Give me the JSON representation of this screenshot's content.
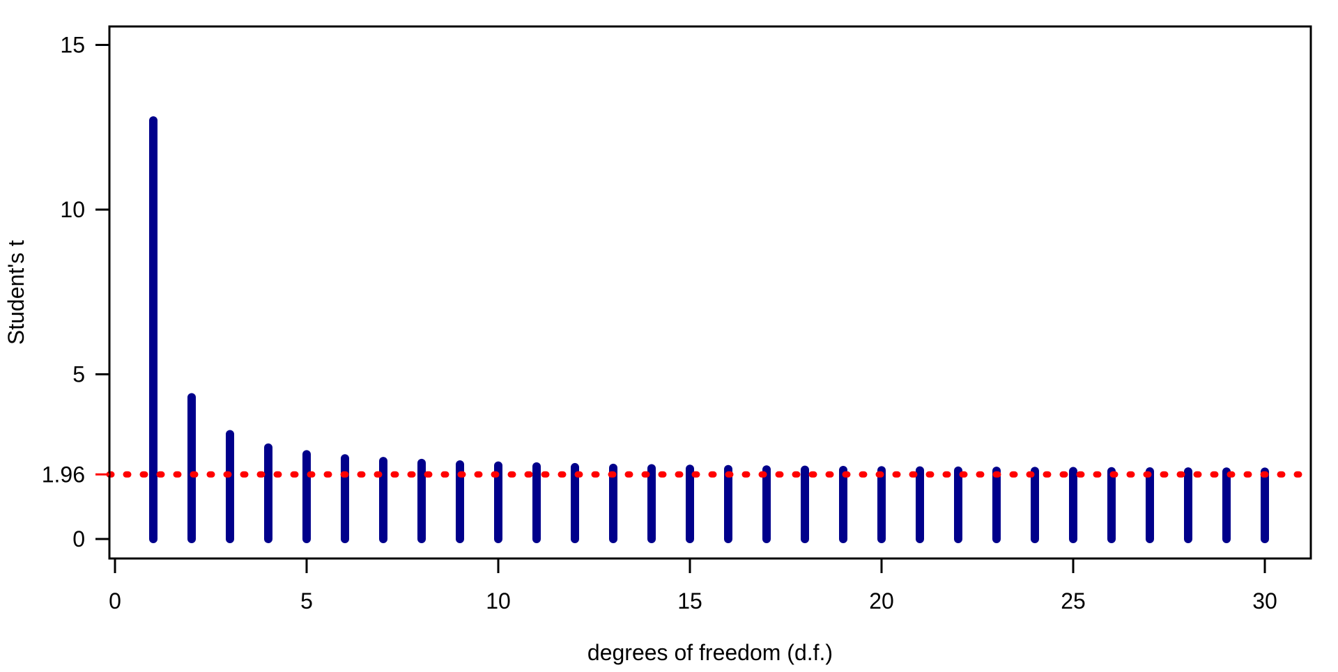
{
  "figure": {
    "background": "#FFFFFF",
    "axis_color": "#000000",
    "text_color": "#000000"
  },
  "chart_data": {
    "type": "bar",
    "title": "",
    "xlabel": "degrees of freedom (d.f.)",
    "ylabel": "Student's t",
    "bar_color": "#00008B",
    "categories": [
      1,
      2,
      3,
      4,
      5,
      6,
      7,
      8,
      9,
      10,
      11,
      12,
      13,
      14,
      15,
      16,
      17,
      18,
      19,
      20,
      21,
      22,
      23,
      24,
      25,
      26,
      27,
      28,
      29,
      30
    ],
    "values": [
      12.706,
      4.303,
      3.182,
      2.776,
      2.571,
      2.447,
      2.365,
      2.306,
      2.262,
      2.228,
      2.201,
      2.179,
      2.16,
      2.145,
      2.131,
      2.12,
      2.11,
      2.101,
      2.093,
      2.086,
      2.08,
      2.074,
      2.069,
      2.064,
      2.06,
      2.056,
      2.052,
      2.048,
      2.045,
      2.042
    ],
    "xlim": [
      0,
      31
    ],
    "ylim": [
      0,
      15.5
    ],
    "grid": false,
    "legend": "none",
    "x_ticks": [
      {
        "value": 0,
        "label": "0"
      },
      {
        "value": 5,
        "label": "5"
      },
      {
        "value": 10,
        "label": "10"
      },
      {
        "value": 15,
        "label": "15"
      },
      {
        "value": 20,
        "label": "20"
      },
      {
        "value": 25,
        "label": "25"
      },
      {
        "value": 30,
        "label": "30"
      }
    ],
    "y_ticks": [
      {
        "value": 0,
        "label": "0",
        "tick_color": "#000000"
      },
      {
        "value": 1.96,
        "label": "1.96",
        "tick_color": "#FF0000"
      },
      {
        "value": 5,
        "label": "5",
        "tick_color": "#000000"
      },
      {
        "value": 10,
        "label": "10",
        "tick_color": "#000000"
      },
      {
        "value": 15,
        "label": "15",
        "tick_color": "#000000"
      }
    ],
    "reference_line": {
      "value": 1.96,
      "label": "1.96",
      "color": "#FF0000",
      "style": "dashed"
    }
  }
}
